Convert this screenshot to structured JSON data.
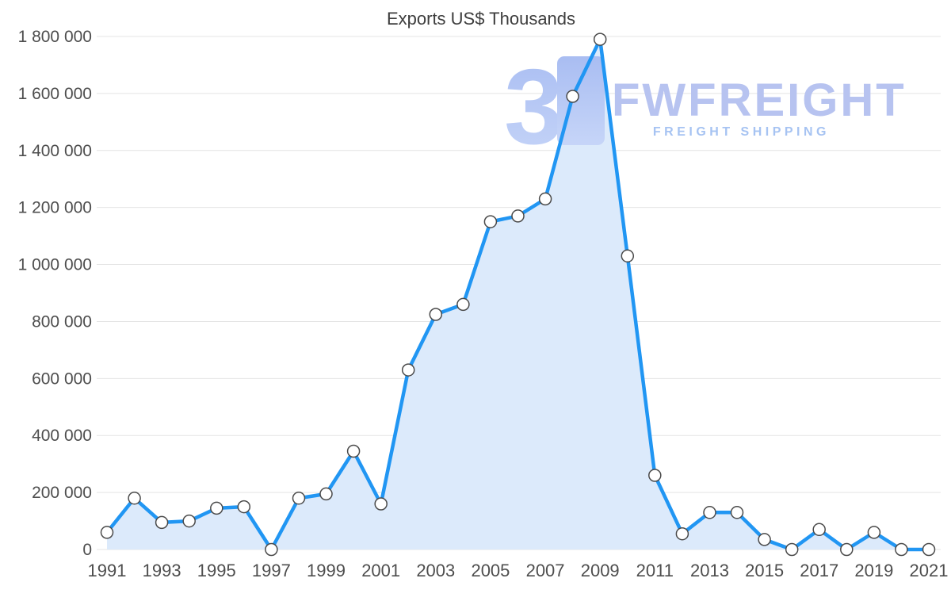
{
  "chart_data": {
    "type": "area",
    "title": "Exports US$ Thousands",
    "x": [
      1991,
      1992,
      1993,
      1994,
      1995,
      1996,
      1997,
      1998,
      1999,
      2000,
      2001,
      2002,
      2003,
      2004,
      2005,
      2006,
      2007,
      2008,
      2009,
      2010,
      2011,
      2012,
      2013,
      2014,
      2015,
      2016,
      2017,
      2018,
      2019,
      2020,
      2021
    ],
    "values": [
      60000,
      180000,
      95000,
      100000,
      145000,
      150000,
      0,
      180000,
      195000,
      345000,
      160000,
      630000,
      825000,
      860000,
      1150000,
      1170000,
      1230000,
      1590000,
      1790000,
      1030000,
      260000,
      55000,
      130000,
      130000,
      35000,
      0,
      70000,
      0,
      60000,
      0,
      0
    ],
    "ylim": [
      0,
      1800000
    ],
    "ytick_step": 200000,
    "y_tick_labels": [
      "0",
      "200 000",
      "400 000",
      "600 000",
      "800 000",
      "1 000 000",
      "1 200 000",
      "1 400 000",
      "1 600 000",
      "1 800 000"
    ],
    "x_tick_labels": [
      "1991",
      "1993",
      "1995",
      "1997",
      "1999",
      "2001",
      "2003",
      "2005",
      "2007",
      "2009",
      "2011",
      "2013",
      "2015",
      "2017",
      "2019",
      "2021"
    ],
    "grid": true,
    "legend": "none",
    "colors": {
      "line": "#2196f3",
      "area_fill": "#dceafb",
      "grid": "#e4e4e4",
      "marker_fill": "#ffffff",
      "marker_stroke": "#4a4a4a",
      "axis_text": "#4e4e4e",
      "title_text": "#3d3d3d"
    }
  },
  "watermark": {
    "logo_glyph": "3",
    "brand": "FWFREIGHT",
    "tagline": "FREIGHT SHIPPING",
    "brand_color": "#b7c3f0",
    "tagline_color": "#a6c3f2",
    "logo_color_top": "#a9bdf2",
    "logo_color_bottom": "#c6d5f8"
  }
}
